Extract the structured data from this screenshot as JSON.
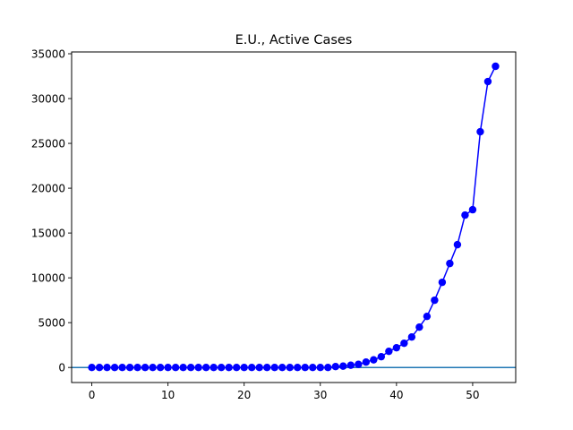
{
  "chart_data": {
    "type": "line",
    "title": "E.U., Active Cases",
    "xlabel": "",
    "ylabel": "",
    "xlim": [
      -2.65,
      55.65
    ],
    "ylim": [
      -1680,
      35200
    ],
    "x_ticks": [
      0,
      10,
      20,
      30,
      40,
      50
    ],
    "y_ticks": [
      0,
      5000,
      10000,
      15000,
      20000,
      25000,
      30000,
      35000
    ],
    "grid": false,
    "legend": "none",
    "reference_line": {
      "y": 0,
      "color": "#1f77b4"
    },
    "series": [
      {
        "color": "#0000ff",
        "marker": "circle",
        "x": [
          0,
          1,
          2,
          3,
          4,
          5,
          6,
          7,
          8,
          9,
          10,
          11,
          12,
          13,
          14,
          15,
          16,
          17,
          18,
          19,
          20,
          21,
          22,
          23,
          24,
          25,
          26,
          27,
          28,
          29,
          30,
          31,
          32,
          33,
          34,
          35,
          36,
          37,
          38,
          39,
          40,
          41,
          42,
          43,
          44,
          45,
          46,
          47,
          48,
          49,
          50,
          51,
          52,
          53
        ],
        "values": [
          0,
          0,
          0,
          0,
          0,
          0,
          0,
          0,
          0,
          0,
          0,
          0,
          0,
          0,
          0,
          0,
          0,
          0,
          0,
          0,
          0,
          0,
          0,
          0,
          0,
          0,
          0,
          0,
          0,
          0,
          0,
          0,
          100,
          150,
          250,
          350,
          600,
          850,
          1200,
          1800,
          2200,
          2700,
          3400,
          4500,
          5700,
          7500,
          9500,
          11600,
          13700,
          17000,
          17600,
          26300,
          31900,
          33600
        ]
      }
    ]
  }
}
